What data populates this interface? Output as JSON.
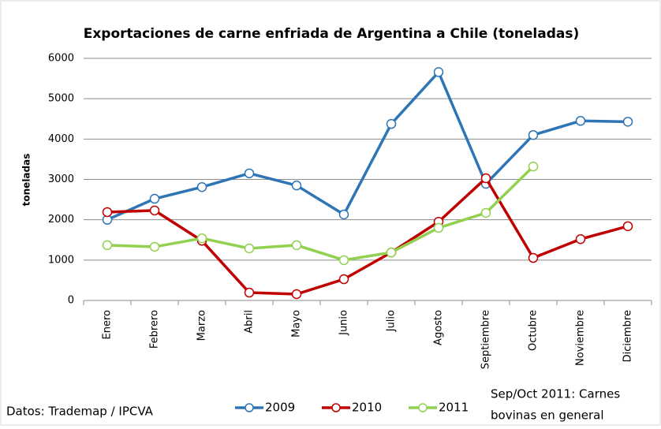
{
  "chart_data": {
    "type": "line",
    "title": "Exportaciones de carne enfriada de Argentina a Chile (toneladas)",
    "y_label": "toneladas",
    "categories": [
      "Enero",
      "Febrero",
      "Marzo",
      "Abril",
      "Mayo",
      "Junio",
      "Julio",
      "Agosto",
      "Septiembre",
      "Octubre",
      "Noviembre",
      "Diciembre"
    ],
    "series": [
      {
        "name": "2009",
        "color": "#2e75b6",
        "values": [
          2000,
          2520,
          2810,
          3150,
          2850,
          2130,
          4375,
          5660,
          2890,
          4100,
          4450,
          4430
        ]
      },
      {
        "name": "2010",
        "color": "#c00000",
        "values": [
          2190,
          2230,
          1480,
          195,
          156,
          527,
          1190,
          1950,
          3030,
          1055,
          1520,
          1840
        ]
      },
      {
        "name": "2011",
        "color": "#92d050",
        "values": [
          1370,
          1330,
          1540,
          1290,
          1370,
          1000,
          1190,
          1800,
          2170,
          3320,
          null,
          null
        ]
      }
    ],
    "ylim": [
      0,
      6000
    ],
    "yticks": [
      0,
      1000,
      2000,
      3000,
      4000,
      5000,
      6000
    ],
    "grid": true,
    "source": "Datos: Trademap / IPCVA",
    "note": [
      "Sep/Oct 2011: Carnes",
      "bovinas en general"
    ]
  }
}
